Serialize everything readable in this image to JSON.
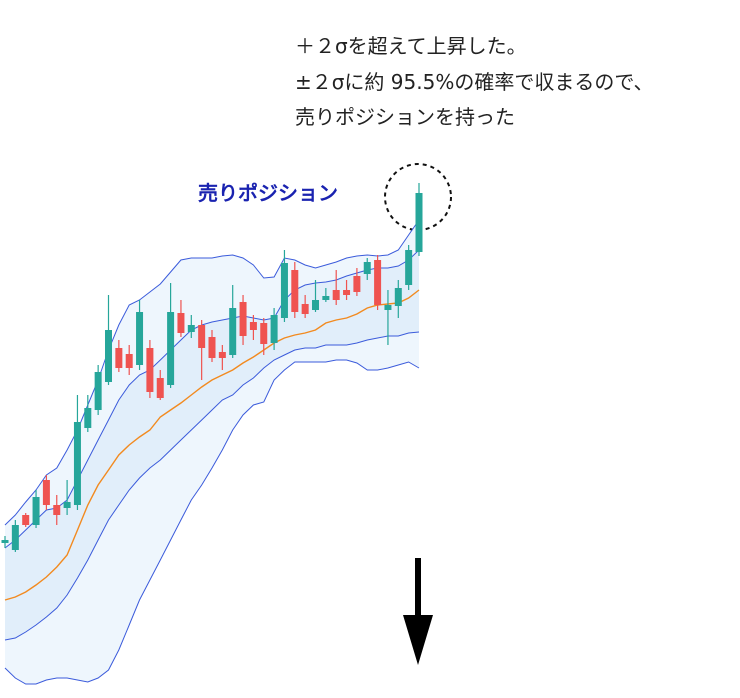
{
  "chart_data": {
    "type": "candlestick",
    "annotations": [
      "＋２σを超えて上昇した。",
      "±２σに約 95.5%の確率で収まるので、",
      "売りポジションを持った"
    ],
    "label": "売りポジション",
    "categories": [
      null,
      null,
      null,
      null,
      null,
      null,
      null,
      null,
      null,
      null,
      null,
      null,
      null,
      null,
      null,
      null,
      null,
      null,
      null,
      null,
      null,
      null,
      null,
      null,
      null,
      null,
      null,
      null,
      null,
      null,
      null,
      null,
      null,
      null,
      null,
      null,
      null,
      null,
      null,
      null,
      null
    ],
    "open": [
      157,
      150,
      185,
      175,
      220,
      195,
      192,
      195,
      272,
      290,
      318,
      352,
      346,
      335,
      352,
      322,
      315,
      387,
      368,
      375,
      363,
      348,
      345,
      398,
      378,
      377,
      357,
      382,
      430,
      396,
      390,
      400,
      410,
      410,
      424,
      426,
      440,
      390,
      394,
      415,
      448
    ],
    "high": [
      164,
      180,
      187,
      210,
      225,
      205,
      220,
      305,
      305,
      335,
      405,
      360,
      355,
      400,
      360,
      330,
      417,
      400,
      385,
      380,
      370,
      355,
      415,
      405,
      385,
      382,
      392,
      450,
      438,
      405,
      420,
      412,
      430,
      420,
      432,
      442,
      445,
      410,
      420,
      455,
      517
    ],
    "low": [
      152,
      148,
      173,
      172,
      190,
      175,
      185,
      190,
      268,
      285,
      315,
      328,
      325,
      330,
      302,
      300,
      312,
      363,
      362,
      320,
      338,
      330,
      342,
      355,
      360,
      345,
      350,
      378,
      382,
      382,
      388,
      398,
      395,
      400,
      404,
      420,
      390,
      355,
      382,
      410,
      444
    ],
    "close": [
      160,
      175,
      175,
      203,
      195,
      185,
      198,
      278,
      292,
      328,
      370,
      332,
      332,
      388,
      308,
      302,
      388,
      367,
      375,
      352,
      342,
      342,
      392,
      364,
      370,
      356,
      385,
      437,
      388,
      386,
      400,
      404,
      400,
      405,
      408,
      438,
      395,
      395,
      412,
      450,
      507
    ],
    "up_color": "#26a69a",
    "down_color": "#ef5350",
    "bands": [
      {
        "color": "#3b5bdb",
        "values": [
          175,
          185,
          198,
          210,
          225,
          232,
          250,
          270,
          295,
          320,
          350,
          375,
          395,
          400,
          408,
          416,
          428,
          440,
          442,
          442,
          442,
          444,
          445,
          442,
          435,
          422,
          423,
          442,
          440,
          435,
          432,
          435,
          438,
          442,
          444,
          445,
          444,
          445,
          450,
          465,
          480
        ]
      },
      {
        "color": "#3b5bdb",
        "values": [
          152,
          160,
          170,
          180,
          190,
          192,
          200,
          220,
          240,
          260,
          280,
          300,
          315,
          325,
          330,
          340,
          350,
          360,
          370,
          375,
          378,
          380,
          382,
          384,
          382,
          380,
          382,
          400,
          410,
          415,
          417,
          418,
          420,
          424,
          427,
          430,
          432,
          432,
          434,
          440,
          450
        ]
      },
      {
        "color": "#f28a1f",
        "values": [
          100,
          103,
          108,
          115,
          123,
          133,
          145,
          170,
          195,
          215,
          230,
          245,
          255,
          263,
          270,
          283,
          290,
          297,
          305,
          313,
          320,
          325,
          330,
          337,
          343,
          350,
          357,
          362,
          365,
          367,
          370,
          377,
          380,
          382,
          386,
          392,
          395,
          396,
          397,
          402,
          410
        ]
      },
      {
        "color": "#3b5bdb",
        "values": [
          60,
          62,
          68,
          75,
          83,
          92,
          105,
          122,
          140,
          160,
          180,
          195,
          210,
          222,
          232,
          240,
          250,
          260,
          270,
          280,
          290,
          300,
          305,
          315,
          322,
          332,
          340,
          345,
          350,
          352,
          352,
          355,
          355,
          355,
          357,
          360,
          362,
          364,
          364,
          367,
          368
        ]
      },
      {
        "color": "#3b5bdb",
        "values": [
          32,
          22,
          16,
          16,
          20,
          22,
          22,
          20,
          18,
          22,
          30,
          50,
          75,
          100,
          120,
          140,
          160,
          180,
          200,
          215,
          232,
          250,
          270,
          285,
          295,
          298,
          320,
          330,
          338,
          338,
          338,
          338,
          340,
          340,
          337,
          330,
          330,
          332,
          335,
          338,
          332
        ]
      }
    ],
    "outer_fill": "#eef6fd",
    "inner_fill": "#e1eefa",
    "ylim": [
      0,
      700
    ]
  }
}
